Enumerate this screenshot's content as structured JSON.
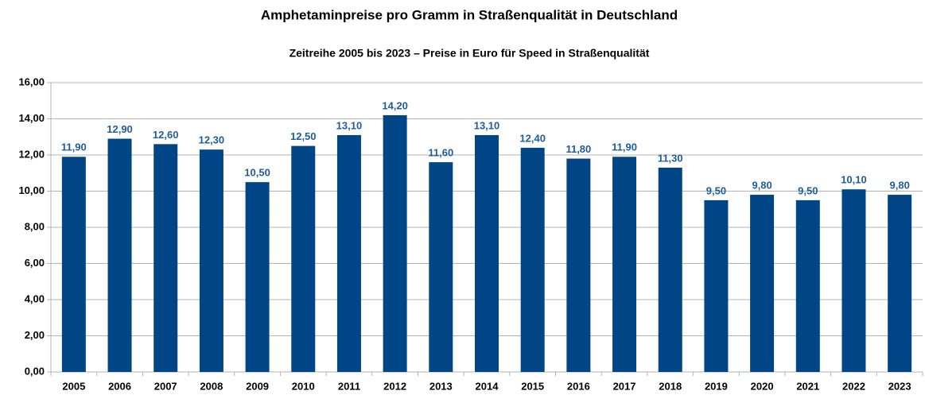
{
  "chart_data": {
    "type": "bar",
    "title": "Amphetaminpreise pro Gramm in Straßenqualität in Deutschland",
    "subtitle": "Zeitreihe 2005 bis 2023  –  Preise in Euro für Speed in Straßenqualität",
    "categories": [
      "2005",
      "2006",
      "2007",
      "2008",
      "2009",
      "2010",
      "2011",
      "2012",
      "2013",
      "2014",
      "2015",
      "2016",
      "2017",
      "2018",
      "2019",
      "2020",
      "2021",
      "2022",
      "2023"
    ],
    "values": [
      11.9,
      12.9,
      12.6,
      12.3,
      10.5,
      12.5,
      13.1,
      14.2,
      11.6,
      13.1,
      12.4,
      11.8,
      11.9,
      11.3,
      9.5,
      9.8,
      9.5,
      10.1,
      9.8
    ],
    "value_labels": [
      "11,90",
      "12,90",
      "12,60",
      "12,30",
      "10,50",
      "12,50",
      "13,10",
      "14,20",
      "11,60",
      "13,10",
      "12,40",
      "11,80",
      "11,90",
      "11,30",
      "9,50",
      "9,80",
      "9,50",
      "10,10",
      "9,80"
    ],
    "color": "#004586",
    "label_color": "#1f5c99",
    "ylim": [
      0,
      16
    ],
    "yticks": [
      {
        "value": 0,
        "label": "0,00"
      },
      {
        "value": 2,
        "label": "2,00"
      },
      {
        "value": 4,
        "label": "4,00"
      },
      {
        "value": 6,
        "label": "6,00"
      },
      {
        "value": 8,
        "label": "8,00"
      },
      {
        "value": 10,
        "label": "10,00"
      },
      {
        "value": 12,
        "label": "12,00"
      },
      {
        "value": 14,
        "label": "14,00"
      },
      {
        "value": 16,
        "label": "16,00"
      }
    ],
    "grid": true
  }
}
